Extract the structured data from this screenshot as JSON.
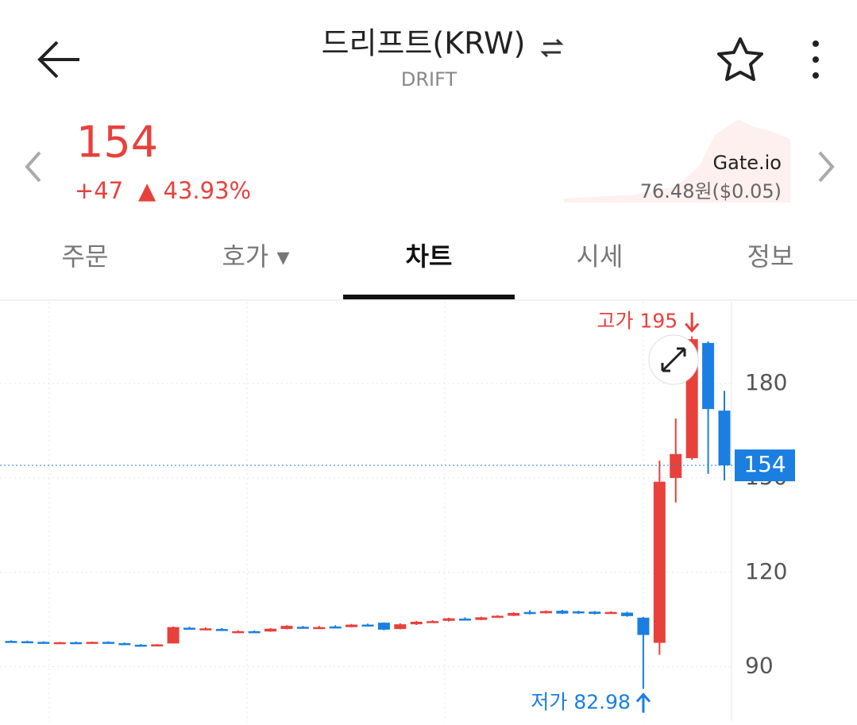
{
  "header": {
    "title": "드리프트(KRW)",
    "subtitle": "DRIFT"
  },
  "price": {
    "current": "154",
    "change": "+47",
    "change_rate": "▲ 43.93%",
    "exchange": "Gate.io",
    "exchange_price": "76.48원($0.05)"
  },
  "tabs": [
    "주문",
    "호가 ▾",
    "차트",
    "시세",
    "정보"
  ],
  "chart_data": {
    "type": "candlestick",
    "up_color": "#e8413c",
    "down_color": "#1a7fe0",
    "open": [
      98.2,
      98.1,
      97.9,
      97.6,
      97.8,
      97.8,
      97.9,
      97.5,
      97.0,
      96.8,
      97.4,
      102.4,
      101.8,
      102.0,
      101.2,
      101.3,
      101.2,
      102.0,
      102.7,
      102.4,
      102.8,
      102.6,
      103.4,
      104.0,
      102.0,
      103.5,
      104.3,
      104.6,
      105.3,
      104.9,
      105.8,
      106.2,
      107.4,
      107.0,
      107.8,
      107.6,
      107.5,
      106.9,
      107.2,
      105.6,
      97.6,
      150.0,
      156.3,
      192.9,
      171.4
    ],
    "high": [
      98.4,
      98.3,
      98.1,
      97.9,
      98.0,
      98.0,
      98.1,
      97.7,
      97.2,
      97.2,
      102.8,
      102.7,
      102.5,
      102.3,
      101.6,
      101.5,
      102.3,
      103.2,
      103.0,
      103.0,
      103.2,
      103.6,
      103.7,
      104.1,
      103.8,
      104.6,
      104.8,
      105.6,
      105.7,
      105.9,
      106.4,
      107.3,
      108.0,
      107.9,
      108.1,
      107.8,
      107.7,
      107.6,
      107.5,
      105.8,
      155.5,
      168.9,
      195,
      193.4,
      177.7
    ],
    "low": [
      97.9,
      97.8,
      97.7,
      97.5,
      97.6,
      97.6,
      97.5,
      97.0,
      96.7,
      96.7,
      97.4,
      101.8,
      101.6,
      101.8,
      101.0,
      101.0,
      101.1,
      101.9,
      102.2,
      102.3,
      102.5,
      102.5,
      102.9,
      101.6,
      101.9,
      103.3,
      104.0,
      104.4,
      105.0,
      104.8,
      105.6,
      106.1,
      106.6,
      106.9,
      106.7,
      106.8,
      106.6,
      106.8,
      105.9,
      82.98,
      93.8,
      142.2,
      155.8,
      151.3,
      149.2
    ],
    "close": [
      98.1,
      97.9,
      97.8,
      97.8,
      97.7,
      97.9,
      97.6,
      97.1,
      96.9,
      97.1,
      102.6,
      101.9,
      102.2,
      101.9,
      101.3,
      101.1,
      102.1,
      103.0,
      102.4,
      102.6,
      102.7,
      103.4,
      103.1,
      101.8,
      103.5,
      104.3,
      104.5,
      105.4,
      105.2,
      105.7,
      106.2,
      107.1,
      106.8,
      107.7,
      106.9,
      107.0,
      106.8,
      107.4,
      106.1,
      100.1,
      148.8,
      157.6,
      194.1,
      171.9,
      154
    ],
    "last_price": 154,
    "ylim": [
      72.5,
      206
    ],
    "yticks": [
      90,
      120,
      150,
      180
    ],
    "annotations": {
      "high": "고가 195",
      "low": "저가 82.98"
    }
  }
}
